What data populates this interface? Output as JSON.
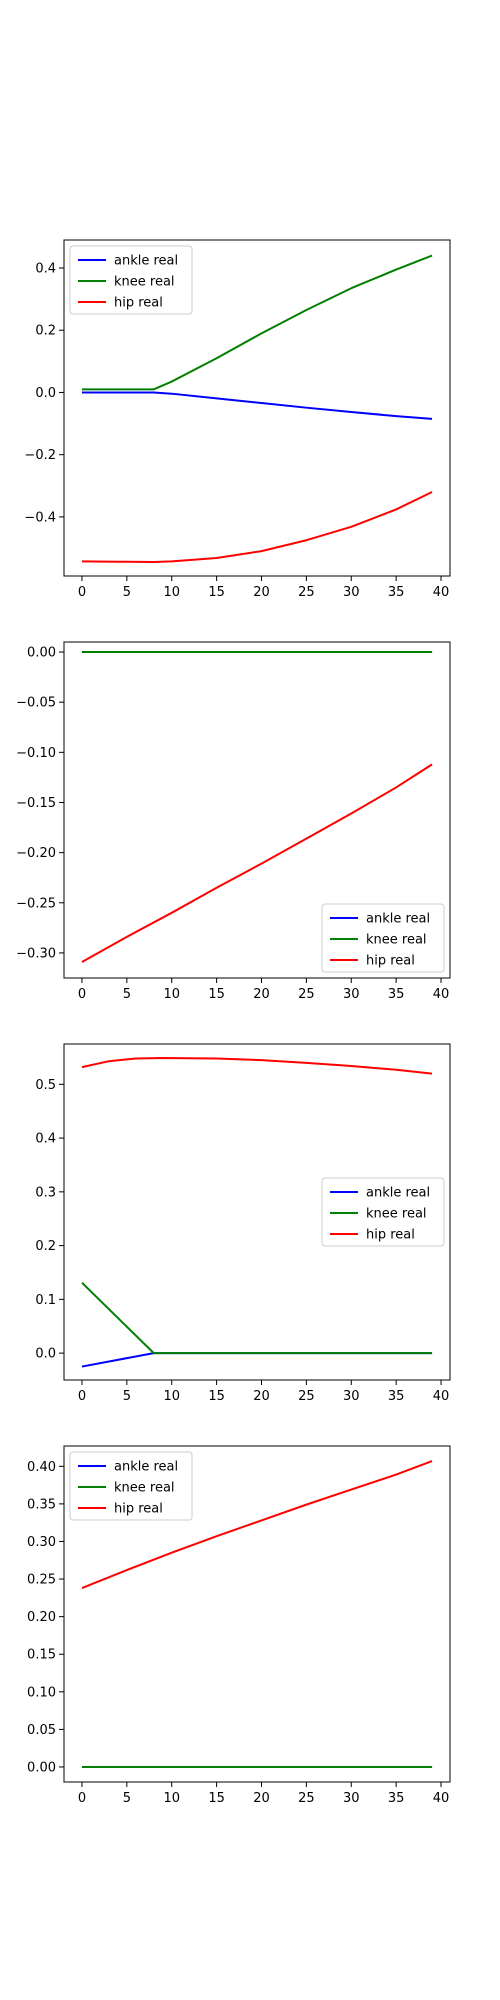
{
  "chart_data": [
    {
      "type": "line",
      "xlim": [
        -2,
        41
      ],
      "ylim": [
        -0.59,
        0.49
      ],
      "xticks": [
        0,
        5,
        10,
        15,
        20,
        25,
        30,
        35,
        40
      ],
      "yticks": [
        -0.4,
        -0.2,
        0.0,
        0.2,
        0.4
      ],
      "ytick_labels": [
        "−0.4",
        "−0.2",
        "0.0",
        "0.2",
        "0.4"
      ],
      "legend_position": "upper-left",
      "series": [
        {
          "name": "ankle real",
          "color": "#0000ff",
          "points": [
            [
              0,
              0.0
            ],
            [
              8,
              0.0
            ],
            [
              10,
              -0.004
            ],
            [
              15,
              -0.019
            ],
            [
              20,
              -0.034
            ],
            [
              25,
              -0.049
            ],
            [
              30,
              -0.063
            ],
            [
              35,
              -0.076
            ],
            [
              39,
              -0.085
            ]
          ]
        },
        {
          "name": "knee real",
          "color": "#008000",
          "points": [
            [
              0,
              0.01
            ],
            [
              8,
              0.01
            ],
            [
              10,
              0.035
            ],
            [
              15,
              0.11
            ],
            [
              20,
              0.19
            ],
            [
              25,
              0.265
            ],
            [
              30,
              0.335
            ],
            [
              35,
              0.395
            ],
            [
              39,
              0.44
            ]
          ]
        },
        {
          "name": "hip real",
          "color": "#ff0000",
          "points": [
            [
              0,
              -0.543
            ],
            [
              4,
              -0.544
            ],
            [
              8,
              -0.545
            ],
            [
              10,
              -0.543
            ],
            [
              15,
              -0.532
            ],
            [
              20,
              -0.51
            ],
            [
              25,
              -0.475
            ],
            [
              30,
              -0.432
            ],
            [
              35,
              -0.376
            ],
            [
              39,
              -0.32
            ]
          ]
        }
      ]
    },
    {
      "type": "line",
      "xlim": [
        -2,
        41
      ],
      "ylim": [
        -0.325,
        0.01
      ],
      "xticks": [
        0,
        5,
        10,
        15,
        20,
        25,
        30,
        35,
        40
      ],
      "yticks": [
        -0.3,
        -0.25,
        -0.2,
        -0.15,
        -0.1,
        -0.05,
        0.0
      ],
      "ytick_labels": [
        "−0.30",
        "−0.25",
        "−0.20",
        "−0.15",
        "−0.10",
        "−0.05",
        "0.00"
      ],
      "legend_position": "lower-right",
      "series": [
        {
          "name": "ankle real",
          "color": "#0000ff",
          "points": [
            [
              0,
              0.0
            ],
            [
              39,
              0.0
            ]
          ]
        },
        {
          "name": "knee real",
          "color": "#008000",
          "points": [
            [
              0,
              0.0
            ],
            [
              39,
              0.0
            ]
          ]
        },
        {
          "name": "hip real",
          "color": "#ff0000",
          "points": [
            [
              0,
              -0.309
            ],
            [
              5,
              -0.284
            ],
            [
              10,
              -0.26
            ],
            [
              15,
              -0.235
            ],
            [
              20,
              -0.211
            ],
            [
              25,
              -0.186
            ],
            [
              30,
              -0.161
            ],
            [
              35,
              -0.135
            ],
            [
              39,
              -0.112
            ]
          ]
        }
      ]
    },
    {
      "type": "line",
      "xlim": [
        -2,
        41
      ],
      "ylim": [
        -0.05,
        0.575
      ],
      "xticks": [
        0,
        5,
        10,
        15,
        20,
        25,
        30,
        35,
        40
      ],
      "yticks": [
        0.0,
        0.1,
        0.2,
        0.3,
        0.4,
        0.5
      ],
      "ytick_labels": [
        "0.0",
        "0.1",
        "0.2",
        "0.3",
        "0.4",
        "0.5"
      ],
      "legend_position": "center-right",
      "series": [
        {
          "name": "ankle real",
          "color": "#0000ff",
          "points": [
            [
              0,
              -0.025
            ],
            [
              8,
              0.0
            ],
            [
              39,
              0.0
            ]
          ]
        },
        {
          "name": "knee real",
          "color": "#008000",
          "points": [
            [
              0,
              0.131
            ],
            [
              8,
              0.0
            ],
            [
              39,
              0.0
            ]
          ]
        },
        {
          "name": "hip real",
          "color": "#ff0000",
          "points": [
            [
              0,
              0.532
            ],
            [
              3,
              0.543
            ],
            [
              6,
              0.548
            ],
            [
              9,
              0.549
            ],
            [
              15,
              0.548
            ],
            [
              20,
              0.545
            ],
            [
              25,
              0.54
            ],
            [
              30,
              0.534
            ],
            [
              35,
              0.527
            ],
            [
              39,
              0.52
            ]
          ]
        }
      ]
    },
    {
      "type": "line",
      "xlim": [
        -2,
        41
      ],
      "ylim": [
        -0.02,
        0.427
      ],
      "xticks": [
        0,
        5,
        10,
        15,
        20,
        25,
        30,
        35,
        40
      ],
      "yticks": [
        0.0,
        0.05,
        0.1,
        0.15,
        0.2,
        0.25,
        0.3,
        0.35,
        0.4
      ],
      "ytick_labels": [
        "0.00",
        "0.05",
        "0.10",
        "0.15",
        "0.20",
        "0.25",
        "0.30",
        "0.35",
        "0.40"
      ],
      "legend_position": "upper-left",
      "series": [
        {
          "name": "ankle real",
          "color": "#0000ff",
          "points": [
            [
              0,
              0.0
            ],
            [
              39,
              0.0
            ]
          ]
        },
        {
          "name": "knee real",
          "color": "#008000",
          "points": [
            [
              0,
              0.0
            ],
            [
              39,
              0.0
            ]
          ]
        },
        {
          "name": "hip real",
          "color": "#ff0000",
          "points": [
            [
              0,
              0.238
            ],
            [
              5,
              0.262
            ],
            [
              10,
              0.285
            ],
            [
              15,
              0.307
            ],
            [
              20,
              0.328
            ],
            [
              25,
              0.349
            ],
            [
              30,
              0.369
            ],
            [
              35,
              0.389
            ],
            [
              39,
              0.407
            ]
          ]
        }
      ]
    }
  ]
}
